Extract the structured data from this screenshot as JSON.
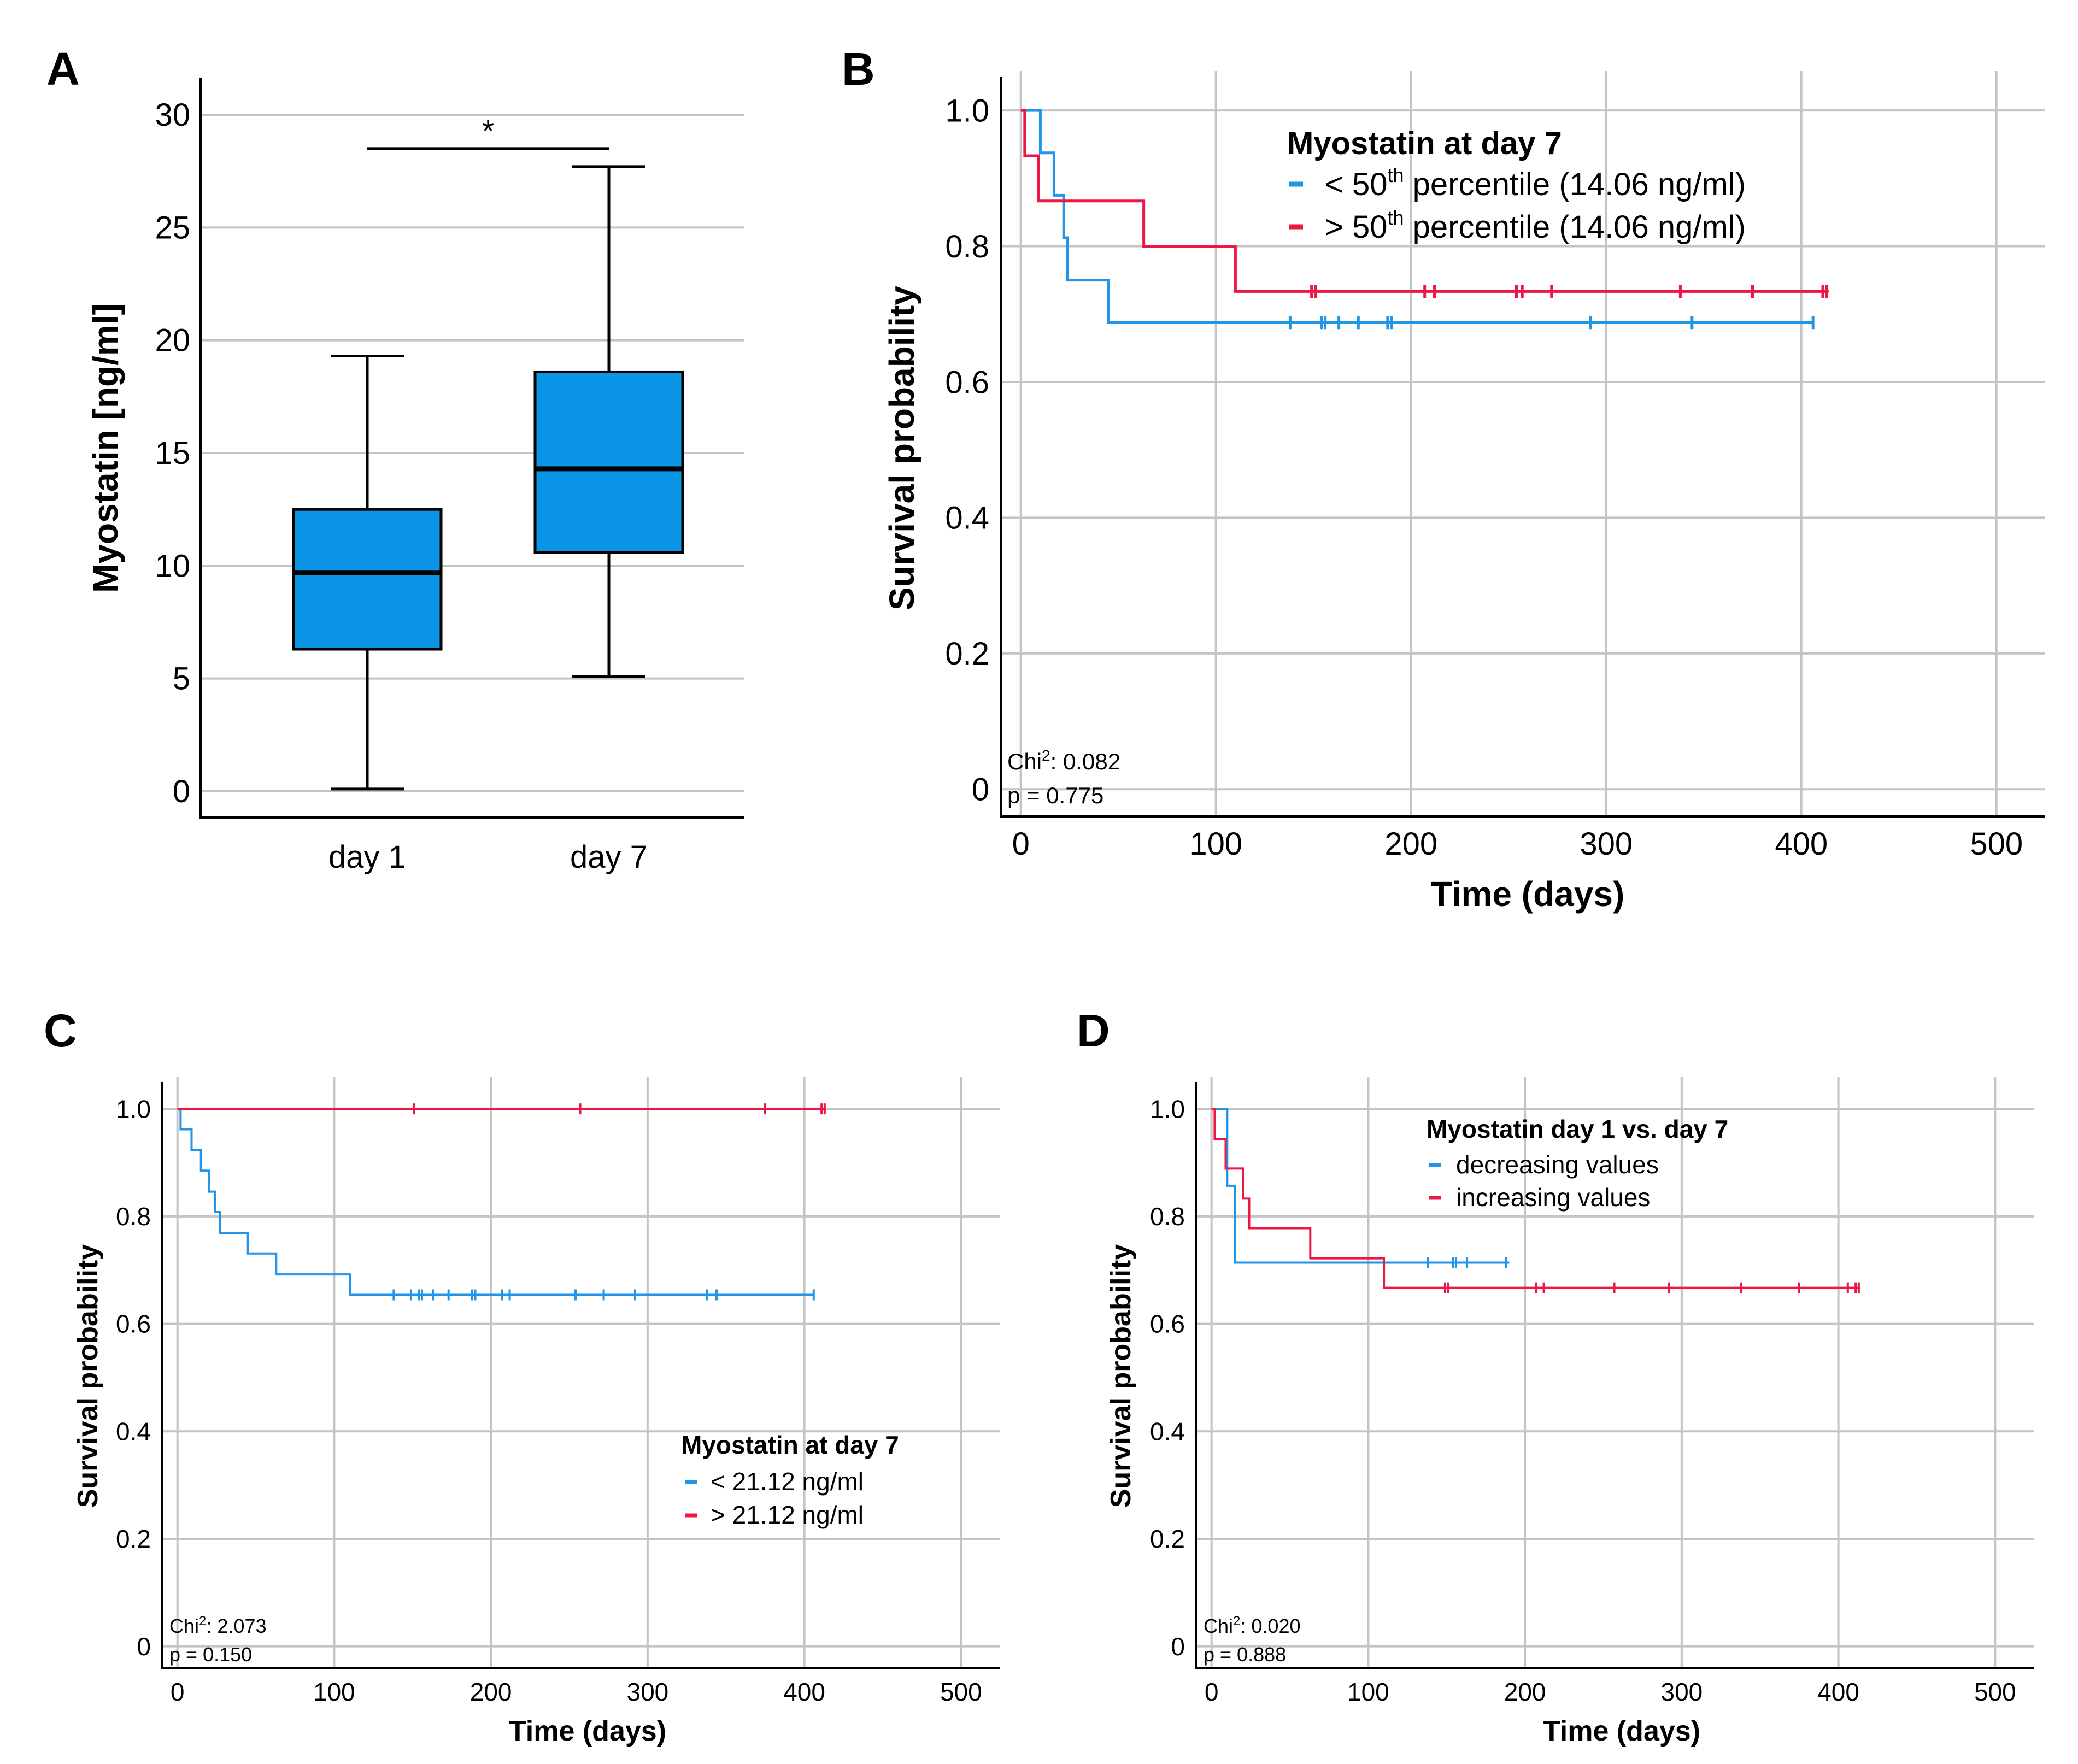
{
  "colors": {
    "blue": "#2196e8",
    "red": "#ec1744",
    "box_fill": "#0b95e6",
    "grid": "#c4c4c4"
  },
  "chart_data": [
    {
      "panel": "A",
      "type": "box",
      "ylabel": "Myostatin [ng/ml]",
      "ylim": [
        0,
        30
      ],
      "yticks": [
        "0",
        "5",
        "10",
        "15",
        "20",
        "25",
        "30"
      ],
      "categories": [
        "day 1",
        "day 7"
      ],
      "boxes": [
        {
          "name": "day 1",
          "min": 0.1,
          "q1": 6.3,
          "median": 9.7,
          "q3": 12.5,
          "max": 19.3
        },
        {
          "name": "day 7",
          "min": 5.1,
          "q1": 10.6,
          "median": 14.3,
          "q3": 18.6,
          "max": 27.7
        }
      ],
      "significance": {
        "label": "*",
        "level": 28.5
      }
    },
    {
      "panel": "B",
      "type": "line",
      "xlabel": "Time (days)",
      "ylabel": "Survival probability",
      "xlim": [
        -10,
        525
      ],
      "ylim": [
        -0.04,
        1.05
      ],
      "xticks": [
        "0",
        "100",
        "200",
        "300",
        "400",
        "500"
      ],
      "yticks": [
        "0",
        "0.2",
        "0.4",
        "0.6",
        "0.8",
        "1.0"
      ],
      "legend": {
        "title": "Myostatin at day 7",
        "items": [
          {
            "pre": "< 50",
            "sup": "th",
            "post": " percentile (14.06 ng/ml)"
          },
          {
            "pre": "> 50",
            "sup": "th",
            "post": " percentile (14.06 ng/ml)"
          }
        ]
      },
      "stat": {
        "chi_pre": "Chi",
        "chi_sup": "2",
        "chi_post": ": 0.082",
        "p": "p = 0.775"
      },
      "series": [
        {
          "name": "< 50th percentile (14.06 ng/ml)",
          "color": "blue",
          "steps": [
            [
              0,
              1.0
            ],
            [
              7,
              1.0
            ],
            [
              10,
              0.9375
            ],
            [
              17,
              0.875
            ],
            [
              22,
              0.8125
            ],
            [
              24,
              0.75
            ],
            [
              45,
              0.6875
            ],
            [
              406,
              0.6875
            ]
          ],
          "censors": [
            138,
            154,
            156,
            163,
            173,
            188,
            190,
            292,
            344,
            406
          ]
        },
        {
          "name": "> 50th percentile (14.06 ng/ml)",
          "color": "red",
          "steps": [
            [
              0,
              1.0
            ],
            [
              2,
              0.9333
            ],
            [
              9,
              0.8667
            ],
            [
              63,
              0.8
            ],
            [
              110,
              0.7333
            ],
            [
              414,
              0.7333
            ]
          ],
          "censors": [
            149,
            151,
            207,
            212,
            254,
            257,
            272,
            338,
            375,
            411,
            413
          ]
        }
      ]
    },
    {
      "panel": "C",
      "type": "line",
      "xlabel": "Time (days)",
      "ylabel": "Survival probability",
      "xlim": [
        -10,
        525
      ],
      "ylim": [
        -0.04,
        1.05
      ],
      "xticks": [
        "0",
        "100",
        "200",
        "300",
        "400",
        "500"
      ],
      "yticks": [
        "0",
        "0.2",
        "0.4",
        "0.6",
        "0.8",
        "1.0"
      ],
      "legend": {
        "title": "Myostatin at day 7",
        "items": [
          {
            "pre": "< 21.12 ng/ml",
            "sup": "",
            "post": ""
          },
          {
            "pre": "> 21.12 ng/ml",
            "sup": "",
            "post": ""
          }
        ]
      },
      "stat": {
        "chi_pre": "Chi",
        "chi_sup": "2",
        "chi_post": ": 2.073",
        "p": "p = 0.150"
      },
      "series": [
        {
          "name": "< 21.12 ng/ml",
          "color": "blue",
          "steps": [
            [
              0,
              1.0
            ],
            [
              2,
              0.962
            ],
            [
              9,
              0.923
            ],
            [
              15,
              0.885
            ],
            [
              20,
              0.846
            ],
            [
              24,
              0.808
            ],
            [
              27,
              0.769
            ],
            [
              45,
              0.731
            ],
            [
              63,
              0.692
            ],
            [
              110,
              0.654
            ],
            [
              406,
              0.654
            ]
          ],
          "censors": [
            138,
            149,
            154,
            156,
            163,
            173,
            188,
            190,
            207,
            212,
            254,
            272,
            292,
            338,
            344,
            406
          ]
        },
        {
          "name": "> 21.12 ng/ml",
          "color": "red",
          "steps": [
            [
              0,
              1.0
            ],
            [
              414,
              1.0
            ]
          ],
          "censors": [
            151,
            257,
            375,
            411,
            413
          ]
        }
      ]
    },
    {
      "panel": "D",
      "type": "line",
      "xlabel": "Time (days)",
      "ylabel": "Survival probability",
      "xlim": [
        -10,
        525
      ],
      "ylim": [
        -0.04,
        1.05
      ],
      "xticks": [
        "0",
        "100",
        "200",
        "300",
        "400",
        "500"
      ],
      "yticks": [
        "0",
        "0.2",
        "0.4",
        "0.6",
        "0.8",
        "1.0"
      ],
      "legend": {
        "title": "Myostatin day 1 vs. day 7",
        "items": [
          {
            "pre": "decreasing values",
            "sup": "",
            "post": ""
          },
          {
            "pre": "increasing values",
            "sup": "",
            "post": ""
          }
        ]
      },
      "stat": {
        "chi_pre": "Chi",
        "chi_sup": "2",
        "chi_post": ": 0.020",
        "p": "p = 0.888"
      },
      "series": [
        {
          "name": "decreasing values",
          "color": "blue",
          "steps": [
            [
              0,
              1.0
            ],
            [
              7,
              1.0
            ],
            [
              10,
              0.857
            ],
            [
              15,
              0.714
            ],
            [
              190,
              0.714
            ]
          ],
          "censors": [
            138,
            154,
            156,
            163,
            188
          ]
        },
        {
          "name": "increasing values",
          "color": "red",
          "steps": [
            [
              0,
              1.0
            ],
            [
              2,
              0.944
            ],
            [
              9,
              0.889
            ],
            [
              20,
              0.833
            ],
            [
              24,
              0.778
            ],
            [
              63,
              0.722
            ],
            [
              110,
              0.667
            ],
            [
              414,
              0.667
            ]
          ],
          "censors": [
            149,
            151,
            207,
            212,
            257,
            292,
            338,
            375,
            406,
            411,
            413
          ]
        }
      ]
    }
  ]
}
